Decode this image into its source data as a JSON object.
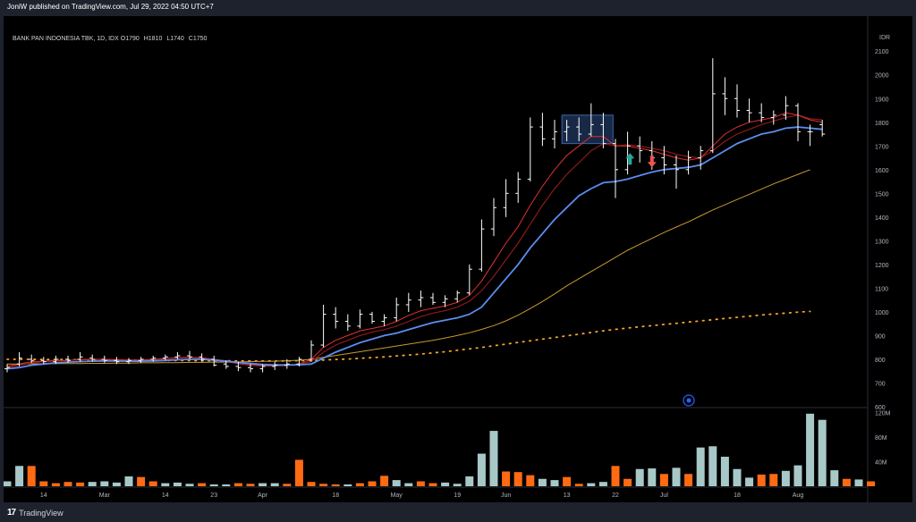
{
  "header": {
    "published_text": "JoniW published on TradingView.com, Jul 29, 2022 04:50 UTC+7"
  },
  "footer": {
    "brand_logo": "17",
    "brand_name": "TradingView"
  },
  "legend": {
    "symbol": "BANK PAN INDONESIA TBK, 1D, IDX",
    "open_label": "O",
    "open": "1790",
    "high_label": "H",
    "high": "1810",
    "low_label": "L",
    "low": "1740",
    "close_label": "C",
    "close": "1750"
  },
  "currency": "IDR",
  "colors": {
    "background": "#000000",
    "frame": "#1e222d",
    "bar": "#ffffff",
    "ema_fast": "#e03030",
    "ema_dark": "#8b1a1a",
    "ema_blue": "#5b8def",
    "ma_gold": "#c99a2e",
    "ma_dotted": "#f5a623",
    "volume_up": "#a8c8c8",
    "volume_down": "#ff6a13",
    "arrow_up": "#26a69a",
    "arrow_down": "#ef5350",
    "box": "#2a4a80"
  },
  "chart_data": {
    "type": "ohlc",
    "price_axis": {
      "ylim": [
        600,
        2180
      ],
      "ticks": [
        "2100",
        "2000",
        "1900",
        "1800",
        "1700",
        "1600",
        "1500",
        "1400",
        "1300",
        "1200",
        "1100",
        "1000",
        "900",
        "800",
        "700",
        "600"
      ]
    },
    "volume_axis": {
      "ylim": [
        0,
        125
      ],
      "ticks": [
        "120M",
        "80M",
        "40M"
      ]
    },
    "x_ticks": [
      {
        "label": "14",
        "i": 3
      },
      {
        "label": "Mar",
        "i": 8
      },
      {
        "label": "14",
        "i": 13
      },
      {
        "label": "23",
        "i": 17
      },
      {
        "label": "Apr",
        "i": 21
      },
      {
        "label": "18",
        "i": 27
      },
      {
        "label": "May",
        "i": 32
      },
      {
        "label": "19",
        "i": 37
      },
      {
        "label": "Jun",
        "i": 41
      },
      {
        "label": "13",
        "i": 46
      },
      {
        "label": "22",
        "i": 50
      },
      {
        "label": "Jul",
        "i": 54
      },
      {
        "label": "18",
        "i": 60
      },
      {
        "label": "Aug",
        "i": 65
      }
    ],
    "bars": [
      {
        "o": 760,
        "h": 780,
        "l": 745,
        "c": 765
      },
      {
        "o": 780,
        "h": 830,
        "l": 770,
        "c": 805
      },
      {
        "o": 800,
        "h": 820,
        "l": 785,
        "c": 795
      },
      {
        "o": 795,
        "h": 810,
        "l": 780,
        "c": 790
      },
      {
        "o": 790,
        "h": 815,
        "l": 780,
        "c": 800
      },
      {
        "o": 800,
        "h": 815,
        "l": 785,
        "c": 795
      },
      {
        "o": 800,
        "h": 830,
        "l": 790,
        "c": 810
      },
      {
        "o": 805,
        "h": 820,
        "l": 790,
        "c": 800
      },
      {
        "o": 800,
        "h": 815,
        "l": 785,
        "c": 795
      },
      {
        "o": 795,
        "h": 810,
        "l": 780,
        "c": 790
      },
      {
        "o": 790,
        "h": 805,
        "l": 780,
        "c": 795
      },
      {
        "o": 795,
        "h": 810,
        "l": 785,
        "c": 800
      },
      {
        "o": 800,
        "h": 815,
        "l": 790,
        "c": 805
      },
      {
        "o": 805,
        "h": 820,
        "l": 795,
        "c": 810
      },
      {
        "o": 810,
        "h": 830,
        "l": 800,
        "c": 815
      },
      {
        "o": 815,
        "h": 835,
        "l": 800,
        "c": 810
      },
      {
        "o": 810,
        "h": 825,
        "l": 790,
        "c": 800
      },
      {
        "o": 800,
        "h": 815,
        "l": 770,
        "c": 775
      },
      {
        "o": 780,
        "h": 795,
        "l": 760,
        "c": 770
      },
      {
        "o": 770,
        "h": 790,
        "l": 750,
        "c": 765
      },
      {
        "o": 765,
        "h": 780,
        "l": 745,
        "c": 760
      },
      {
        "o": 760,
        "h": 780,
        "l": 745,
        "c": 770
      },
      {
        "o": 770,
        "h": 790,
        "l": 755,
        "c": 775
      },
      {
        "o": 775,
        "h": 800,
        "l": 760,
        "c": 780
      },
      {
        "o": 780,
        "h": 810,
        "l": 770,
        "c": 800
      },
      {
        "o": 800,
        "h": 880,
        "l": 790,
        "c": 860
      },
      {
        "o": 860,
        "h": 1030,
        "l": 850,
        "c": 990
      },
      {
        "o": 990,
        "h": 1020,
        "l": 930,
        "c": 960
      },
      {
        "o": 960,
        "h": 990,
        "l": 920,
        "c": 940
      },
      {
        "o": 940,
        "h": 1010,
        "l": 930,
        "c": 990
      },
      {
        "o": 990,
        "h": 1000,
        "l": 950,
        "c": 960
      },
      {
        "o": 960,
        "h": 990,
        "l": 940,
        "c": 975
      },
      {
        "o": 975,
        "h": 1060,
        "l": 960,
        "c": 1030
      },
      {
        "o": 1030,
        "h": 1080,
        "l": 1000,
        "c": 1050
      },
      {
        "o": 1050,
        "h": 1090,
        "l": 1020,
        "c": 1060
      },
      {
        "o": 1060,
        "h": 1080,
        "l": 1030,
        "c": 1040
      },
      {
        "o": 1040,
        "h": 1070,
        "l": 1020,
        "c": 1055
      },
      {
        "o": 1055,
        "h": 1090,
        "l": 1040,
        "c": 1080
      },
      {
        "o": 1080,
        "h": 1200,
        "l": 1070,
        "c": 1180
      },
      {
        "o": 1180,
        "h": 1390,
        "l": 1170,
        "c": 1350
      },
      {
        "o": 1350,
        "h": 1480,
        "l": 1320,
        "c": 1440
      },
      {
        "o": 1440,
        "h": 1560,
        "l": 1400,
        "c": 1500
      },
      {
        "o": 1500,
        "h": 1590,
        "l": 1460,
        "c": 1560
      },
      {
        "o": 1560,
        "h": 1820,
        "l": 1550,
        "c": 1780
      },
      {
        "o": 1780,
        "h": 1840,
        "l": 1700,
        "c": 1730
      },
      {
        "o": 1730,
        "h": 1810,
        "l": 1690,
        "c": 1760
      },
      {
        "o": 1760,
        "h": 1810,
        "l": 1720,
        "c": 1780
      },
      {
        "o": 1780,
        "h": 1820,
        "l": 1720,
        "c": 1750
      },
      {
        "o": 1750,
        "h": 1880,
        "l": 1740,
        "c": 1790
      },
      {
        "o": 1790,
        "h": 1840,
        "l": 1690,
        "c": 1710
      },
      {
        "o": 1710,
        "h": 1730,
        "l": 1480,
        "c": 1600
      },
      {
        "o": 1600,
        "h": 1760,
        "l": 1580,
        "c": 1700
      },
      {
        "o": 1700,
        "h": 1740,
        "l": 1630,
        "c": 1680
      },
      {
        "o": 1680,
        "h": 1720,
        "l": 1600,
        "c": 1650
      },
      {
        "o": 1650,
        "h": 1700,
        "l": 1580,
        "c": 1620
      },
      {
        "o": 1620,
        "h": 1660,
        "l": 1520,
        "c": 1600
      },
      {
        "o": 1600,
        "h": 1680,
        "l": 1580,
        "c": 1650
      },
      {
        "o": 1650,
        "h": 1700,
        "l": 1600,
        "c": 1680
      },
      {
        "o": 1680,
        "h": 2070,
        "l": 1670,
        "c": 1920
      },
      {
        "o": 1920,
        "h": 1990,
        "l": 1830,
        "c": 1900
      },
      {
        "o": 1900,
        "h": 1960,
        "l": 1820,
        "c": 1850
      },
      {
        "o": 1850,
        "h": 1900,
        "l": 1800,
        "c": 1840
      },
      {
        "o": 1840,
        "h": 1880,
        "l": 1800,
        "c": 1820
      },
      {
        "o": 1820,
        "h": 1850,
        "l": 1790,
        "c": 1830
      },
      {
        "o": 1830,
        "h": 1910,
        "l": 1810,
        "c": 1870
      },
      {
        "o": 1870,
        "h": 1880,
        "l": 1720,
        "c": 1760
      },
      {
        "o": 1760,
        "h": 1790,
        "l": 1700,
        "c": 1760
      },
      {
        "o": 1790,
        "h": 1810,
        "l": 1740,
        "c": 1750
      }
    ],
    "ema_fast": [
      770,
      780,
      790,
      792,
      795,
      795,
      800,
      800,
      800,
      798,
      796,
      797,
      800,
      803,
      807,
      809,
      806,
      798,
      790,
      782,
      775,
      772,
      772,
      774,
      780,
      800,
      850,
      880,
      900,
      920,
      930,
      940,
      960,
      985,
      1005,
      1015,
      1025,
      1040,
      1070,
      1130,
      1210,
      1290,
      1360,
      1450,
      1530,
      1600,
      1660,
      1700,
      1740,
      1740,
      1700,
      1700,
      1690,
      1680,
      1665,
      1650,
      1640,
      1650,
      1700,
      1750,
      1780,
      1800,
      1810,
      1820,
      1840,
      1830,
      1810,
      1800
    ],
    "ema_dark": [
      765,
      775,
      785,
      790,
      793,
      795,
      798,
      799,
      800,
      799,
      797,
      797,
      799,
      802,
      806,
      808,
      806,
      800,
      793,
      786,
      780,
      776,
      775,
      776,
      779,
      790,
      830,
      860,
      880,
      900,
      915,
      925,
      940,
      960,
      980,
      995,
      1005,
      1020,
      1045,
      1090,
      1150,
      1220,
      1290,
      1370,
      1450,
      1520,
      1580,
      1630,
      1680,
      1710,
      1700,
      1705,
      1700,
      1690,
      1680,
      1665,
      1655,
      1650,
      1680,
      1720,
      1750,
      1770,
      1790,
      1805,
      1820,
      1830,
      1815,
      1810
    ],
    "ema_blue": [
      760,
      765,
      775,
      780,
      785,
      788,
      790,
      792,
      793,
      793,
      792,
      792,
      793,
      795,
      798,
      800,
      800,
      797,
      792,
      787,
      782,
      778,
      776,
      776,
      777,
      780,
      805,
      830,
      850,
      870,
      885,
      900,
      910,
      925,
      940,
      955,
      965,
      975,
      990,
      1020,
      1080,
      1140,
      1200,
      1270,
      1330,
      1390,
      1440,
      1490,
      1520,
      1545,
      1550,
      1560,
      1575,
      1590,
      1600,
      1605,
      1610,
      1620,
      1650,
      1680,
      1710,
      1730,
      1750,
      1760,
      1775,
      1780,
      1775,
      1770
    ],
    "ma_gold": [
      780,
      780,
      781,
      781,
      782,
      782,
      782,
      783,
      783,
      784,
      784,
      785,
      785,
      786,
      786,
      787,
      787,
      788,
      788,
      789,
      790,
      791,
      792,
      794,
      796,
      800,
      808,
      816,
      824,
      832,
      840,
      848,
      856,
      864,
      872,
      880,
      890,
      900,
      912,
      926,
      942,
      962,
      986,
      1014,
      1044,
      1076,
      1110,
      1140,
      1170,
      1200,
      1230,
      1260,
      1285,
      1310,
      1335,
      1358,
      1380,
      1405,
      1430,
      1452,
      1474,
      1496,
      1518,
      1540,
      1560,
      1580,
      1600
    ],
    "ma_dotted": [
      800,
      800,
      800,
      799,
      799,
      799,
      798,
      798,
      798,
      797,
      797,
      796,
      796,
      795,
      795,
      795,
      794,
      794,
      794,
      793,
      793,
      793,
      793,
      793,
      794,
      795,
      797,
      799,
      801,
      804,
      807,
      810,
      814,
      818,
      822,
      827,
      832,
      838,
      844,
      850,
      857,
      864,
      871,
      878,
      885,
      892,
      899,
      906,
      913,
      920,
      926,
      932,
      937,
      942,
      947,
      952,
      957,
      962,
      967,
      972,
      977,
      982,
      987,
      991,
      995,
      999,
      1002
    ],
    "volume": [
      {
        "v": 8,
        "up": true
      },
      {
        "v": 33,
        "up": true
      },
      {
        "v": 33,
        "up": false
      },
      {
        "v": 8,
        "up": false
      },
      {
        "v": 5,
        "up": false
      },
      {
        "v": 7,
        "up": false
      },
      {
        "v": 6,
        "up": false
      },
      {
        "v": 7,
        "up": true
      },
      {
        "v": 8,
        "up": true
      },
      {
        "v": 6,
        "up": true
      },
      {
        "v": 16,
        "up": true
      },
      {
        "v": 15,
        "up": false
      },
      {
        "v": 8,
        "up": false
      },
      {
        "v": 5,
        "up": true
      },
      {
        "v": 6,
        "up": true
      },
      {
        "v": 4,
        "up": true
      },
      {
        "v": 5,
        "up": false
      },
      {
        "v": 3,
        "up": true
      },
      {
        "v": 3,
        "up": true
      },
      {
        "v": 5,
        "up": false
      },
      {
        "v": 4,
        "up": false
      },
      {
        "v": 5,
        "up": true
      },
      {
        "v": 5,
        "up": true
      },
      {
        "v": 4,
        "up": false
      },
      {
        "v": 43,
        "up": false
      },
      {
        "v": 7,
        "up": false
      },
      {
        "v": 4,
        "up": false
      },
      {
        "v": 3,
        "up": false
      },
      {
        "v": 3,
        "up": true
      },
      {
        "v": 5,
        "up": false
      },
      {
        "v": 8,
        "up": false
      },
      {
        "v": 17,
        "up": false
      },
      {
        "v": 10,
        "up": true
      },
      {
        "v": 5,
        "up": true
      },
      {
        "v": 8,
        "up": false
      },
      {
        "v": 5,
        "up": false
      },
      {
        "v": 6,
        "up": true
      },
      {
        "v": 4,
        "up": true
      },
      {
        "v": 16,
        "up": true
      },
      {
        "v": 53,
        "up": true
      },
      {
        "v": 90,
        "up": true
      },
      {
        "v": 24,
        "up": false
      },
      {
        "v": 23,
        "up": false
      },
      {
        "v": 18,
        "up": false
      },
      {
        "v": 12,
        "up": true
      },
      {
        "v": 10,
        "up": true
      },
      {
        "v": 15,
        "up": false
      },
      {
        "v": 4,
        "up": false
      },
      {
        "v": 5,
        "up": true
      },
      {
        "v": 7,
        "up": true
      },
      {
        "v": 33,
        "up": false
      },
      {
        "v": 12,
        "up": false
      },
      {
        "v": 28,
        "up": true
      },
      {
        "v": 29,
        "up": true
      },
      {
        "v": 20,
        "up": false
      },
      {
        "v": 30,
        "up": true
      },
      {
        "v": 20,
        "up": false
      },
      {
        "v": 63,
        "up": true
      },
      {
        "v": 65,
        "up": true
      },
      {
        "v": 48,
        "up": true
      },
      {
        "v": 28,
        "up": true
      },
      {
        "v": 14,
        "up": true
      },
      {
        "v": 19,
        "up": false
      },
      {
        "v": 20,
        "up": false
      },
      {
        "v": 25,
        "up": true
      },
      {
        "v": 34,
        "up": true
      },
      {
        "v": 118,
        "up": true
      },
      {
        "v": 108,
        "up": true
      },
      {
        "v": 26,
        "up": true
      },
      {
        "v": 12,
        "up": false
      },
      {
        "v": 11,
        "up": true
      },
      {
        "v": 8,
        "up": false
      }
    ]
  }
}
